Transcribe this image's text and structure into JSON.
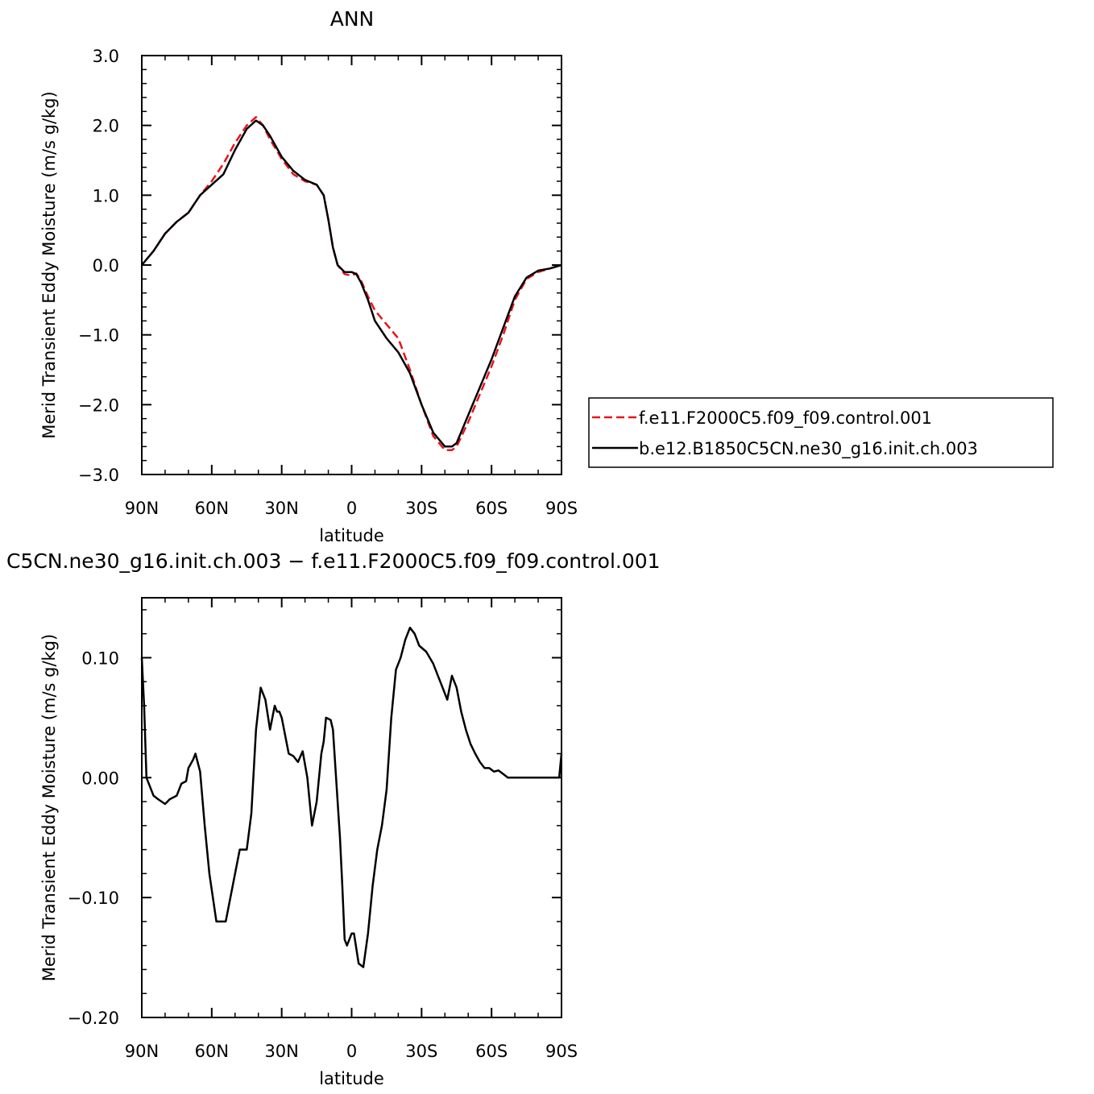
{
  "chart_data": [
    {
      "type": "line",
      "title": "ANN",
      "xlabel": "latitude",
      "ylabel": "Merid Transient Eddy Moisture (m/s g/kg)",
      "xlim": [
        90,
        -90
      ],
      "ylim": [
        -3.0,
        3.0
      ],
      "xticks": [
        90,
        60,
        30,
        0,
        -30,
        -60,
        -90
      ],
      "xtick_labels": [
        "90N",
        "60N",
        "30N",
        "0",
        "30S",
        "60S",
        "90S"
      ],
      "yticks": [
        3.0,
        2.0,
        1.0,
        0.0,
        -1.0,
        -2.0,
        -3.0
      ],
      "ytick_labels": [
        "3.0",
        "2.0",
        "1.0",
        "0.0",
        "−1.0",
        "−2.0",
        "−3.0"
      ],
      "legend_position": "right",
      "series": [
        {
          "name": "f.e11.F2000C5.f09_f09.control.001",
          "color": "#e8141c",
          "dash": "dashed",
          "x": [
            90,
            85,
            80,
            75,
            70,
            65,
            60,
            55,
            50,
            45,
            41,
            38,
            35,
            30,
            25,
            20,
            15,
            12,
            10,
            8,
            6,
            3,
            0,
            -2,
            -4,
            -7,
            -10,
            -15,
            -20,
            -25,
            -30,
            -35,
            -40,
            -43,
            -45,
            -50,
            -55,
            -60,
            -65,
            -70,
            -75,
            -80,
            -85,
            -90
          ],
          "y": [
            0.0,
            0.2,
            0.45,
            0.62,
            0.75,
            1.0,
            1.2,
            1.45,
            1.75,
            2.0,
            2.12,
            2.0,
            1.8,
            1.52,
            1.3,
            1.2,
            1.15,
            1.0,
            0.65,
            0.25,
            0.0,
            -0.13,
            -0.15,
            -0.12,
            -0.22,
            -0.45,
            -0.65,
            -0.85,
            -1.05,
            -1.5,
            -2.0,
            -2.45,
            -2.65,
            -2.65,
            -2.6,
            -2.25,
            -1.85,
            -1.45,
            -1.0,
            -0.5,
            -0.2,
            -0.1,
            -0.05,
            0.0
          ]
        },
        {
          "name": "b.e12.B1850C5CN.ne30_g16.init.ch.003",
          "color": "#000000",
          "dash": "solid",
          "x": [
            90,
            85,
            80,
            75,
            70,
            65,
            60,
            55,
            50,
            45,
            41,
            38,
            35,
            30,
            25,
            20,
            15,
            12,
            10,
            8,
            6,
            3,
            0,
            -2,
            -4,
            -7,
            -10,
            -15,
            -20,
            -25,
            -30,
            -35,
            -40,
            -43,
            -45,
            -50,
            -55,
            -60,
            -65,
            -70,
            -75,
            -80,
            -85,
            -90
          ],
          "y": [
            0.0,
            0.2,
            0.45,
            0.62,
            0.75,
            1.0,
            1.15,
            1.3,
            1.65,
            1.95,
            2.07,
            2.0,
            1.85,
            1.55,
            1.35,
            1.22,
            1.15,
            1.0,
            0.65,
            0.25,
            0.0,
            -0.1,
            -0.1,
            -0.13,
            -0.25,
            -0.5,
            -0.8,
            -1.05,
            -1.25,
            -1.55,
            -2.0,
            -2.4,
            -2.6,
            -2.6,
            -2.55,
            -2.15,
            -1.75,
            -1.35,
            -0.9,
            -0.45,
            -0.18,
            -0.08,
            -0.05,
            0.0
          ]
        }
      ]
    },
    {
      "type": "line",
      "title": "C5CN.ne30_g16.init.ch.003 − f.e11.F2000C5.f09_f09.control.001",
      "xlabel": "latitude",
      "ylabel": "Merid Transient Eddy Moisture (m/s g/kg)",
      "xlim": [
        90,
        -90
      ],
      "ylim": [
        -0.2,
        0.15
      ],
      "xticks": [
        90,
        60,
        30,
        0,
        -30,
        -60,
        -90
      ],
      "xtick_labels": [
        "90N",
        "60N",
        "30N",
        "0",
        "30S",
        "60S",
        "90S"
      ],
      "yticks": [
        0.1,
        0.0,
        -0.1,
        -0.2
      ],
      "ytick_labels": [
        "0.10",
        "0.00",
        "−0.10",
        "−0.20"
      ],
      "series": [
        {
          "color": "#000000",
          "dash": "solid",
          "x": [
            90,
            89,
            88,
            87,
            85,
            83,
            80,
            78,
            75,
            73,
            71,
            70,
            68,
            67,
            65,
            63,
            61,
            58,
            56,
            54,
            52,
            50,
            48,
            45,
            43,
            41,
            39,
            37,
            35,
            34,
            33,
            32,
            31,
            30,
            29,
            28,
            27,
            25,
            23,
            21,
            19,
            17,
            15,
            13,
            12,
            11,
            9,
            8,
            7,
            5,
            4,
            3,
            2,
            0,
            -1,
            -3,
            -5,
            -7,
            -9,
            -11,
            -13,
            -15,
            -17,
            -19,
            -21,
            -23,
            -25,
            -27,
            -29,
            -32,
            -35,
            -37,
            -39,
            -41,
            -43,
            -45,
            -47,
            -49,
            -51,
            -53,
            -55,
            -57,
            -59,
            -61,
            -63,
            -65,
            -67,
            -69,
            -71,
            -73,
            -75,
            -77,
            -80,
            -83,
            -85,
            -87,
            -89,
            -90
          ],
          "y": [
            0.1,
            0.06,
            0.0,
            -0.005,
            -0.015,
            -0.018,
            -0.022,
            -0.018,
            -0.015,
            -0.005,
            -0.003,
            0.008,
            0.015,
            0.02,
            0.005,
            -0.04,
            -0.08,
            -0.12,
            -0.12,
            -0.12,
            -0.1,
            -0.08,
            -0.06,
            -0.06,
            -0.03,
            0.04,
            0.075,
            0.065,
            0.04,
            0.05,
            0.06,
            0.055,
            0.055,
            0.05,
            0.04,
            0.03,
            0.02,
            0.018,
            0.013,
            0.022,
            0.0,
            -0.04,
            -0.02,
            0.02,
            0.03,
            0.05,
            0.048,
            0.04,
            0.01,
            -0.05,
            -0.09,
            -0.135,
            -0.14,
            -0.13,
            -0.13,
            -0.155,
            -0.158,
            -0.13,
            -0.09,
            -0.06,
            -0.04,
            -0.01,
            0.05,
            0.09,
            0.1,
            0.115,
            0.125,
            0.12,
            0.11,
            0.105,
            0.095,
            0.085,
            0.075,
            0.065,
            0.085,
            0.075,
            0.055,
            0.04,
            0.028,
            0.02,
            0.013,
            0.008,
            0.008,
            0.005,
            0.006,
            0.003,
            0.0,
            0.0,
            0.0,
            0.0,
            0.0,
            0.0,
            0.0,
            0.0,
            0.0,
            0.0,
            0.0,
            0.02
          ]
        }
      ]
    }
  ]
}
